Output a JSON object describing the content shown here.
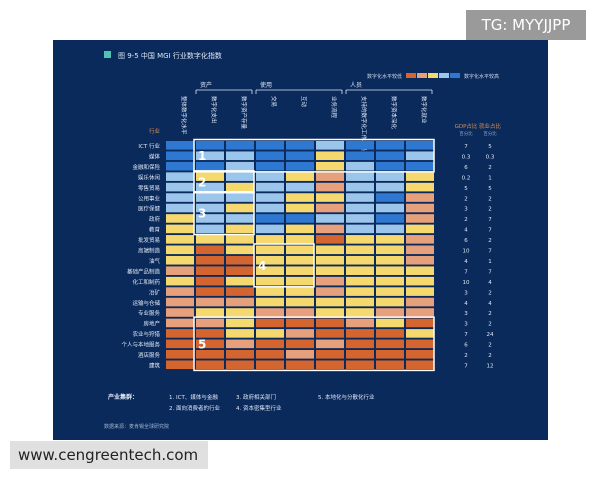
{
  "watermark_top": "TG: MYYJJPP",
  "watermark_bottom": "www.cengreentech.com",
  "figure_title": "图 9-5 中国 MGI 行业数字化指数",
  "source": "数据来源：麦肯锡全球研究院",
  "legend": {
    "low": "数字化水平较低",
    "high": "数字化水平较高"
  },
  "colors": {
    "panel": "#0b2a5c",
    "levels": [
      "#d4652f",
      "#e7a07c",
      "#f5d96e",
      "#9cc5ec",
      "#2f78d1"
    ],
    "accent": "#4fc3b4",
    "highlight_box": "#ffffff",
    "right_header": "#d98f52"
  },
  "chart_data": {
    "type": "heatmap",
    "title": "图 9-5 中国 MGI 行业数字化指数",
    "row_header": "行业",
    "groups": [
      {
        "label": "资产",
        "start": 1,
        "end": 3
      },
      {
        "label": "使用",
        "start": 3,
        "end": 6
      },
      {
        "label": "人员",
        "start": 6,
        "end": 9
      }
    ],
    "columns": [
      "整体数字化水平",
      "数字化支出",
      "数字资产存量",
      "交易",
      "互动",
      "业务流程",
      "支持的数字化工作人员",
      "数字资本深化",
      "数字化就业"
    ],
    "rows": [
      "ICT 行业",
      "媒体",
      "金融和保险",
      "娱乐休闲",
      "零售贸易",
      "公用事业",
      "医疗保健",
      "政府",
      "教育",
      "批发贸易",
      "高端制造",
      "油气",
      "基础产品制造",
      "化工和制药",
      "冶矿",
      "运输与仓储",
      "专业服务",
      "房地产",
      "农业与狩猎",
      "个人与本地服务",
      "酒店服务",
      "建筑"
    ],
    "value_scale": "1 = 数字化水平较低, 5 = 数字化水平较高",
    "values": [
      [
        5,
        5,
        5,
        5,
        5,
        4,
        5,
        5,
        5
      ],
      [
        5,
        4,
        4,
        5,
        5,
        3,
        5,
        5,
        4
      ],
      [
        5,
        5,
        4,
        5,
        5,
        3,
        4,
        5,
        5
      ],
      [
        4,
        3,
        4,
        4,
        3,
        2,
        4,
        4,
        3
      ],
      [
        4,
        4,
        3,
        4,
        4,
        2,
        4,
        4,
        3
      ],
      [
        4,
        4,
        4,
        4,
        3,
        3,
        4,
        5,
        2
      ],
      [
        4,
        4,
        3,
        4,
        3,
        2,
        4,
        4,
        2
      ],
      [
        3,
        4,
        4,
        5,
        5,
        4,
        4,
        5,
        2
      ],
      [
        3,
        4,
        3,
        4,
        3,
        2,
        4,
        4,
        3
      ],
      [
        3,
        3,
        3,
        3,
        3,
        1,
        3,
        3,
        2
      ],
      [
        3,
        1,
        3,
        3,
        3,
        3,
        3,
        3,
        2
      ],
      [
        3,
        1,
        1,
        3,
        3,
        3,
        3,
        3,
        2
      ],
      [
        2,
        1,
        1,
        3,
        3,
        3,
        3,
        3,
        3
      ],
      [
        3,
        1,
        3,
        3,
        3,
        2,
        3,
        3,
        3
      ],
      [
        2,
        1,
        1,
        3,
        3,
        2,
        3,
        3,
        3
      ],
      [
        2,
        2,
        2,
        3,
        3,
        3,
        3,
        3,
        2
      ],
      [
        2,
        3,
        3,
        2,
        2,
        3,
        3,
        2,
        2
      ],
      [
        2,
        2,
        3,
        1,
        1,
        1,
        2,
        3,
        1
      ],
      [
        1,
        1,
        3,
        3,
        2,
        1,
        1,
        1,
        3
      ],
      [
        1,
        1,
        2,
        1,
        1,
        2,
        1,
        1,
        1
      ],
      [
        1,
        1,
        1,
        1,
        2,
        1,
        1,
        1,
        1
      ],
      [
        1,
        1,
        1,
        1,
        1,
        1,
        1,
        1,
        1
      ]
    ],
    "extra_column_headers": [
      "GDP占比",
      "就业占比"
    ],
    "extra_column_subheaders": [
      "百分比",
      "百分比"
    ],
    "gdp_share": [
      "7",
      "0.3",
      "6",
      "0.2",
      "5",
      "2",
      "3",
      "2",
      "4",
      "6",
      "10",
      "4",
      "7",
      "10",
      "3",
      "4",
      "3",
      "3",
      "7",
      "6",
      "2",
      "7"
    ],
    "employment_share": [
      "5",
      "0.3",
      "2",
      "1",
      "5",
      "2",
      "2",
      "7",
      "7",
      "2",
      "7",
      "1",
      "7",
      "4",
      "2",
      "4",
      "2",
      "2",
      "24",
      "2",
      "2",
      "12"
    ],
    "clusters_title": "产业集群：",
    "clusters": [
      {
        "number": "1",
        "label": "1. ICT、媒体与金融",
        "row_start": 0,
        "row_end": 2
      },
      {
        "number": "2",
        "label": "2. 面向消费者的行业",
        "row_start": 3,
        "row_end": 4
      },
      {
        "number": "3",
        "label": "3. 政府相关部门",
        "row_start": 5,
        "row_end": 8
      },
      {
        "number": "4",
        "label": "4. 资本密集型行业",
        "row_start": 10,
        "row_end": 13
      },
      {
        "number": "5",
        "label": "5. 本地化与分散化行业",
        "row_start": 17,
        "row_end": 21
      }
    ]
  }
}
